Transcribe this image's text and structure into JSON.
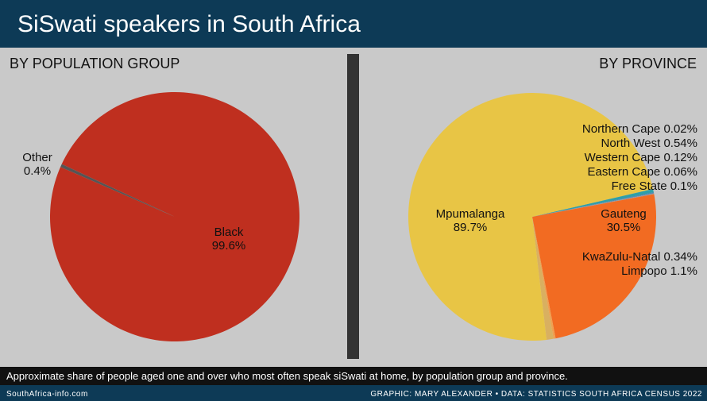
{
  "header": {
    "title": "SiSwati speakers in South Africa"
  },
  "caption": "Approximate share of people aged one and over who most often speak siSwati at home, by population group and province.",
  "footer": {
    "left": "SouthAfrica-info.com",
    "right": "GRAPHIC: MARY ALEXANDER • DATA: STATISTICS SOUTH AFRICA CENSUS 2022"
  },
  "chart_data": [
    {
      "type": "pie",
      "title": "BY POPULATION GROUP",
      "categories": [
        "Black",
        "Other"
      ],
      "values": [
        99.6,
        0.4
      ],
      "value_labels": [
        "99.6%",
        "0.4%"
      ],
      "colors": [
        "#bf2f1f",
        "#555555"
      ]
    },
    {
      "type": "pie",
      "title": "BY PROVINCE",
      "categories": [
        "Northern Cape",
        "North West",
        "Western Cape",
        "Eastern Cape",
        "Free State",
        "Gauteng",
        "KwaZulu-Natal",
        "Limpopo",
        "Mpumalanga"
      ],
      "values": [
        0.02,
        0.54,
        0.12,
        0.06,
        0.1,
        30.5,
        0.34,
        1.1,
        89.7
      ],
      "value_labels": [
        "0.02%",
        "0.54%",
        "0.12%",
        "0.06%",
        "0.1%",
        "30.5%",
        "0.34%",
        "1.1%",
        "89.7%"
      ],
      "colors": [
        "#1f8a8a",
        "#2e9fa8",
        "#4a7fb5",
        "#7a8fa0",
        "#9a9a9a",
        "#f26b22",
        "#f0a050",
        "#d9b060",
        "#e8c545"
      ]
    }
  ]
}
